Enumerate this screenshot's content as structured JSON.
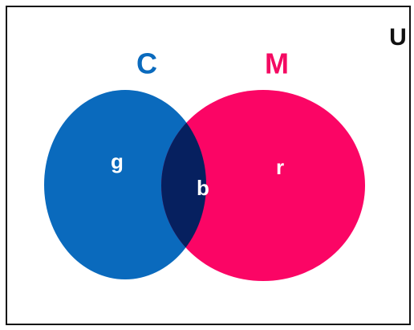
{
  "universe": "U",
  "sets": [
    {
      "label": "C"
    },
    {
      "label": "M"
    }
  ],
  "regions": [
    {
      "label": "g"
    },
    {
      "label": "b"
    },
    {
      "label": "r"
    }
  ]
}
